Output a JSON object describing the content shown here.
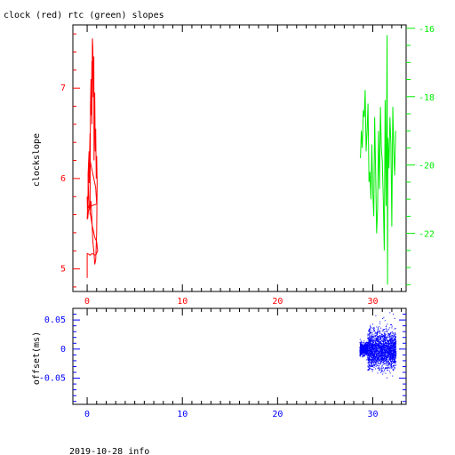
{
  "title": "clock (red) rtc (green) slopes",
  "footer": "2019-10-28 info",
  "colors": {
    "clock": "#ff0000",
    "rtc": "#00ee00",
    "offset": "#0000ff",
    "axis": "#000000"
  },
  "chart_data": [
    {
      "type": "line",
      "title": "clock (red) rtc (green) slopes",
      "xlabel": "",
      "ylabel": "clockslope",
      "xlim": [
        -1.5,
        33.5
      ],
      "ylim": [
        4.75,
        7.7
      ],
      "y2lim": [
        -23.7,
        -15.9
      ],
      "xticks": [
        0,
        10,
        20,
        30
      ],
      "yticks": [
        5,
        6,
        7
      ],
      "y2ticks": [
        -16,
        -18,
        -20,
        -22
      ],
      "series": [
        {
          "name": "clock",
          "color": "#ff0000",
          "axis": "left",
          "x": [
            0.0,
            0.1,
            0.1,
            0.2,
            0.2,
            0.3,
            0.3,
            0.35,
            0.4,
            0.45,
            0.5,
            0.5,
            0.55,
            0.6,
            0.65,
            0.7,
            0.72,
            0.8,
            0.85,
            0.9,
            0.95,
            1.0,
            1.05,
            1.0,
            0.9,
            0.8,
            0.7,
            0.6,
            0.5,
            0.4,
            0.3,
            0.2,
            0.1,
            0.05,
            0.0,
            0.1,
            0.2,
            0.3,
            0.5,
            0.8,
            1.0,
            0.9,
            0.7,
            0.5,
            0.3,
            0.2,
            0.1,
            0.2,
            0.5,
            0.8,
            1.0,
            1.1,
            0.9,
            0.7,
            0.5,
            0.4,
            0.3,
            0.2,
            0.0,
            0.0
          ],
          "y": [
            5.55,
            5.85,
            6.05,
            6.3,
            5.95,
            6.5,
            5.6,
            6.8,
            7.1,
            6.7,
            7.3,
            6.6,
            7.55,
            7.45,
            6.9,
            7.35,
            6.2,
            6.95,
            6.3,
            6.55,
            6.0,
            6.25,
            5.95,
            5.4,
            5.1,
            5.05,
            5.2,
            5.3,
            5.55,
            5.75,
            5.65,
            5.7,
            5.6,
            5.55,
            5.8,
            5.68,
            5.69,
            5.7,
            5.7,
            5.71,
            5.72,
            5.9,
            6.0,
            6.1,
            6.2,
            6.3,
            6.0,
            5.7,
            5.5,
            5.35,
            5.3,
            5.2,
            5.15,
            5.16,
            5.17,
            5.16,
            5.15,
            5.16,
            5.17,
            4.9
          ]
        },
        {
          "name": "rtc",
          "color": "#00ee00",
          "axis": "right",
          "x": [
            28.7,
            28.8,
            28.9,
            29.0,
            29.1,
            29.2,
            29.3,
            29.4,
            29.5,
            29.6,
            29.7,
            29.8,
            29.9,
            30.0,
            30.1,
            30.2,
            30.3,
            30.4,
            30.5,
            30.6,
            30.7,
            30.8,
            30.9,
            31.0,
            31.1,
            31.2,
            31.3,
            31.4,
            31.5,
            31.55,
            31.6,
            31.7,
            31.8,
            31.9,
            32.0,
            32.1,
            32.2,
            32.3,
            32.4
          ],
          "y": [
            -19.8,
            -19.0,
            -19.5,
            -18.4,
            -18.6,
            -17.8,
            -19.6,
            -19.0,
            -18.2,
            -20.5,
            -20.2,
            -21.0,
            -19.4,
            -20.8,
            -21.5,
            -18.6,
            -20.2,
            -22.0,
            -21.3,
            -19.0,
            -20.7,
            -18.3,
            -19.5,
            -19.9,
            -21.0,
            -22.5,
            -18.1,
            -21.2,
            -16.2,
            -23.5,
            -19.2,
            -20.1,
            -18.6,
            -19.4,
            -21.8,
            -18.3,
            -19.6,
            -20.3,
            -19.0
          ]
        }
      ]
    },
    {
      "type": "scatter",
      "xlabel": "",
      "ylabel": "offset(ms)",
      "xlim": [
        -1.5,
        33.5
      ],
      "ylim": [
        -0.095,
        0.07
      ],
      "xticks": [
        0,
        10,
        20,
        30
      ],
      "yticks": [
        0.05,
        0,
        -0.05
      ],
      "ytick_labels": [
        "0.05",
        "0",
        "-0.05"
      ],
      "series": [
        {
          "name": "offset",
          "color": "#0000ff",
          "x_range": [
            28.6,
            32.4
          ],
          "y_band_center": 0.0,
          "y_band_halfwidth": 0.045
        }
      ]
    }
  ]
}
